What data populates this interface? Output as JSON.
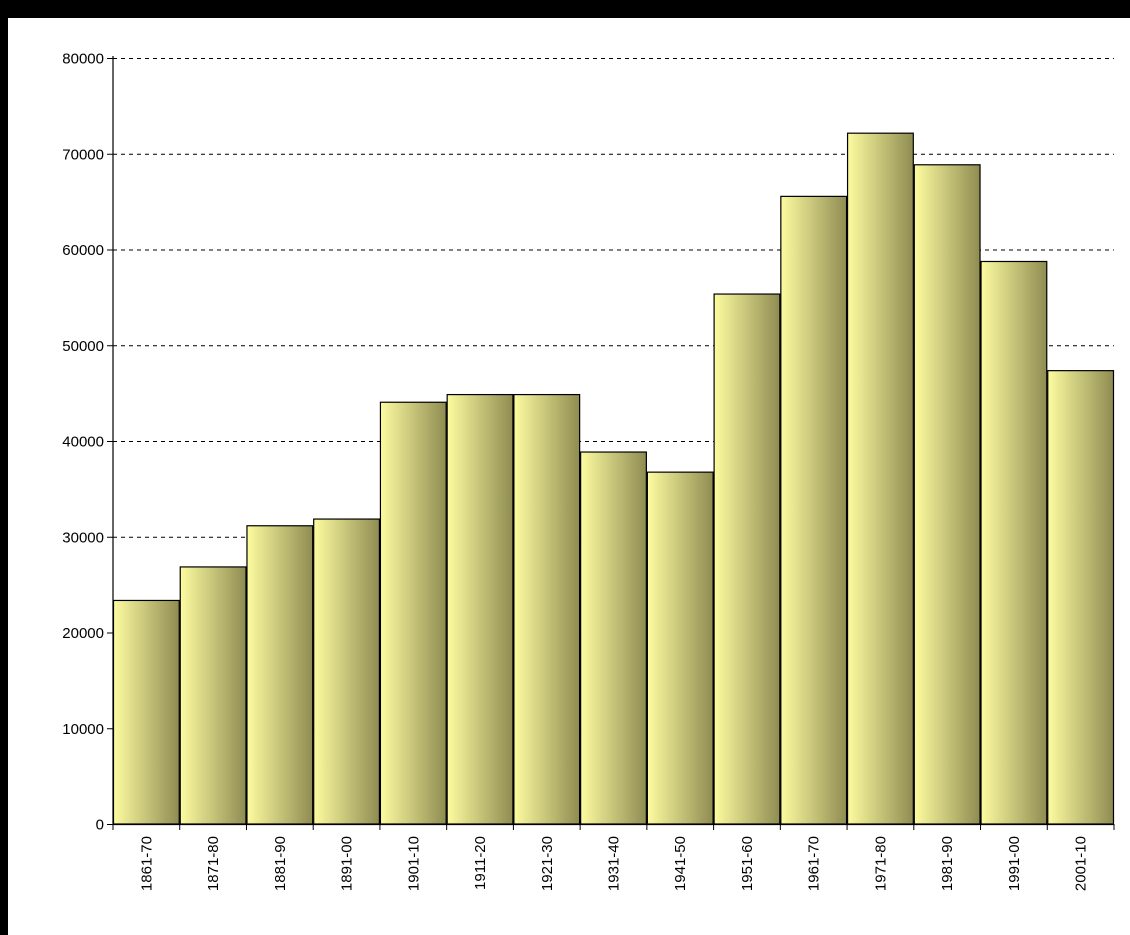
{
  "chart_data": {
    "type": "bar",
    "categories": [
      "1861-70",
      "1871-80",
      "1881-90",
      "1891-00",
      "1901-10",
      "1911-20",
      "1921-30",
      "1931-40",
      "1941-50",
      "1951-60",
      "1961-70",
      "1971-80",
      "1981-90",
      "1991-00",
      "2001-10"
    ],
    "values": [
      23400,
      26900,
      31200,
      31900,
      44100,
      44900,
      44900,
      38900,
      36800,
      55400,
      65600,
      72200,
      68900,
      58800,
      47400
    ],
    "title": "",
    "xlabel": "",
    "ylabel": "",
    "ylim": [
      0,
      80000
    ],
    "yticks": [
      "0",
      "10000",
      "20000",
      "30000",
      "40000",
      "50000",
      "60000",
      "70000",
      "80000"
    ],
    "grid": "dashed horizontal",
    "legend": "none",
    "colors": {
      "bar_light": "#fdfca0",
      "bar_dark": "#8f8c52",
      "bar_stroke": "#000000",
      "grid": "#000000"
    }
  }
}
